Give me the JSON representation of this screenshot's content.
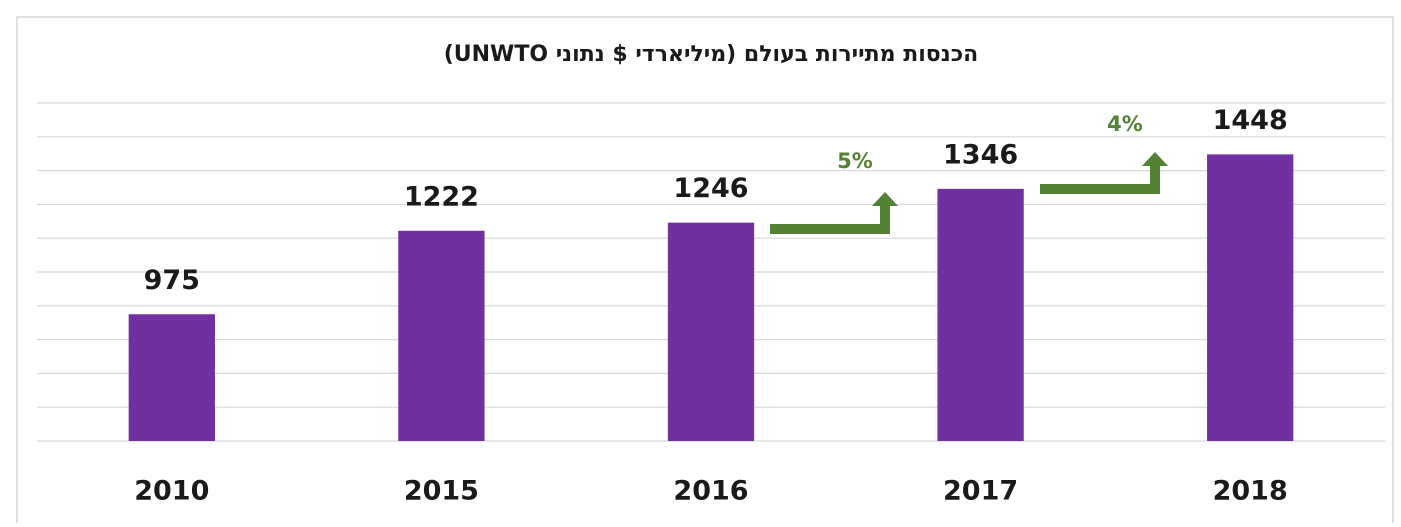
{
  "chart_data": {
    "type": "bar",
    "title": "הכנסות מתיירות בעולם (מיליארדי $ נתוני UNWTO)",
    "categories": [
      "2010",
      "2015",
      "2016",
      "2017",
      "2018"
    ],
    "values": [
      975,
      1222,
      1246,
      1346,
      1448
    ],
    "color": "#7030a0",
    "ylim": [
      600,
      1600
    ],
    "yticks": [
      600,
      700,
      800,
      900,
      1000,
      1100,
      1200,
      1300,
      1400,
      1500,
      1600
    ],
    "grid": true,
    "annotations": [
      {
        "text": "5%",
        "color": "#548235"
      },
      {
        "text": "4%",
        "color": "#548235"
      }
    ]
  }
}
